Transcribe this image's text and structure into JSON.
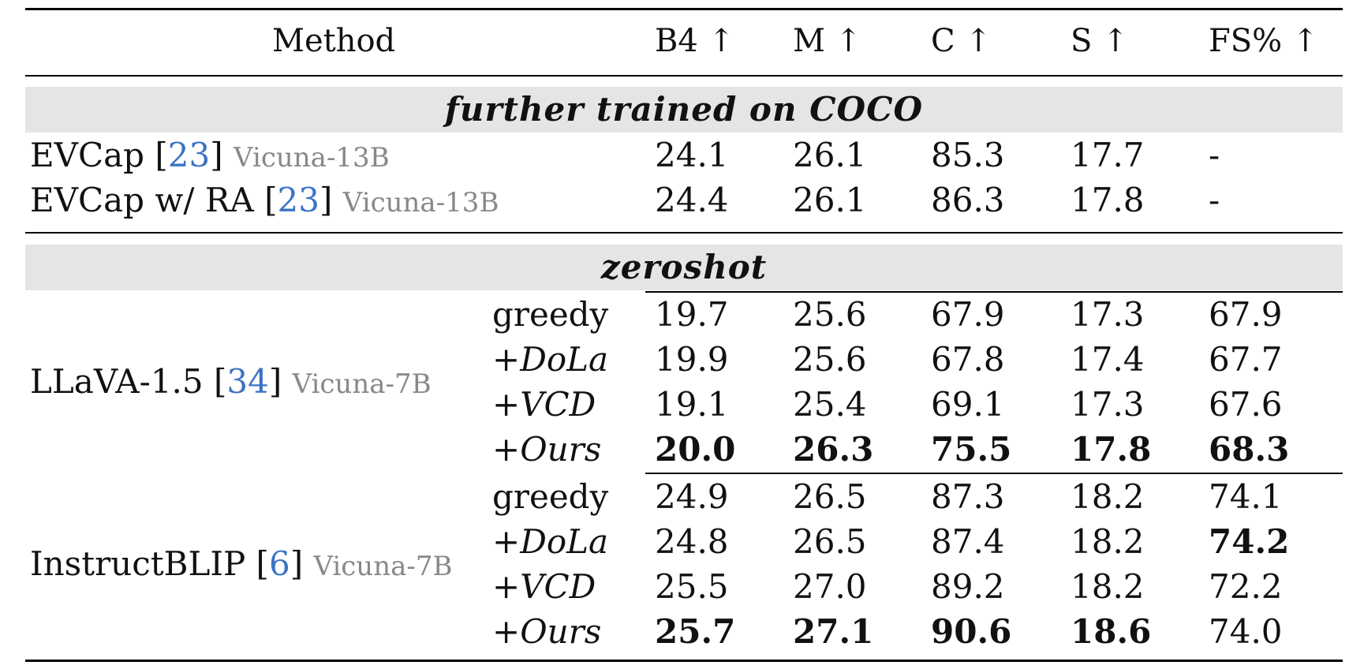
{
  "header": {
    "method": "Method",
    "b4": "B4 ↑",
    "m": "M ↑",
    "c": "C ↑",
    "s": "S ↑",
    "fs": "FS% ↑"
  },
  "sections": {
    "trained": "further trained on COCO",
    "zeroshot": "zeroshot"
  },
  "trained_rows": [
    {
      "name": "EVCap [",
      "cite": "23",
      "close": "]",
      "model": "Vicuna-13B",
      "b4": "24.1",
      "m": "26.1",
      "c": "85.3",
      "s": "17.7",
      "fs": "-"
    },
    {
      "name": "EVCap w/ RA [",
      "cite": "23",
      "close": "]",
      "model": "Vicuna-13B",
      "b4": "24.4",
      "m": "26.1",
      "c": "86.3",
      "s": "17.8",
      "fs": "-"
    }
  ],
  "groups": [
    {
      "name": "LLaVA-1.5 [",
      "cite": "34",
      "close": "]",
      "model": "Vicuna-7B",
      "rows": [
        {
          "variant": "greedy",
          "b4": "19.7",
          "m": "25.6",
          "c": "67.9",
          "s": "17.3",
          "fs": "67.9"
        },
        {
          "variant": "+DoLa",
          "b4": "19.9",
          "m": "25.6",
          "c": "67.8",
          "s": "17.4",
          "fs": "67.7"
        },
        {
          "variant": "+VCD",
          "b4": "19.1",
          "m": "25.4",
          "c": "69.1",
          "s": "17.3",
          "fs": "67.6"
        },
        {
          "variant": "+Ours",
          "b4": "20.0",
          "m": "26.3",
          "c": "75.5",
          "s": "17.8",
          "fs": "68.3"
        }
      ]
    },
    {
      "name": "InstructBLIP [",
      "cite": "6",
      "close": "]",
      "model": "Vicuna-7B",
      "rows": [
        {
          "variant": "greedy",
          "b4": "24.9",
          "m": "26.5",
          "c": "87.3",
          "s": "18.2",
          "fs": "74.1"
        },
        {
          "variant": "+DoLa",
          "b4": "24.8",
          "m": "26.5",
          "c": "87.4",
          "s": "18.2",
          "fs": "74.2"
        },
        {
          "variant": "+VCD",
          "b4": "25.5",
          "m": "27.0",
          "c": "89.2",
          "s": "18.2",
          "fs": "72.2"
        },
        {
          "variant": "+Ours",
          "b4": "25.7",
          "m": "27.1",
          "c": "90.6",
          "s": "18.6",
          "fs": "74.0"
        }
      ]
    }
  ]
}
